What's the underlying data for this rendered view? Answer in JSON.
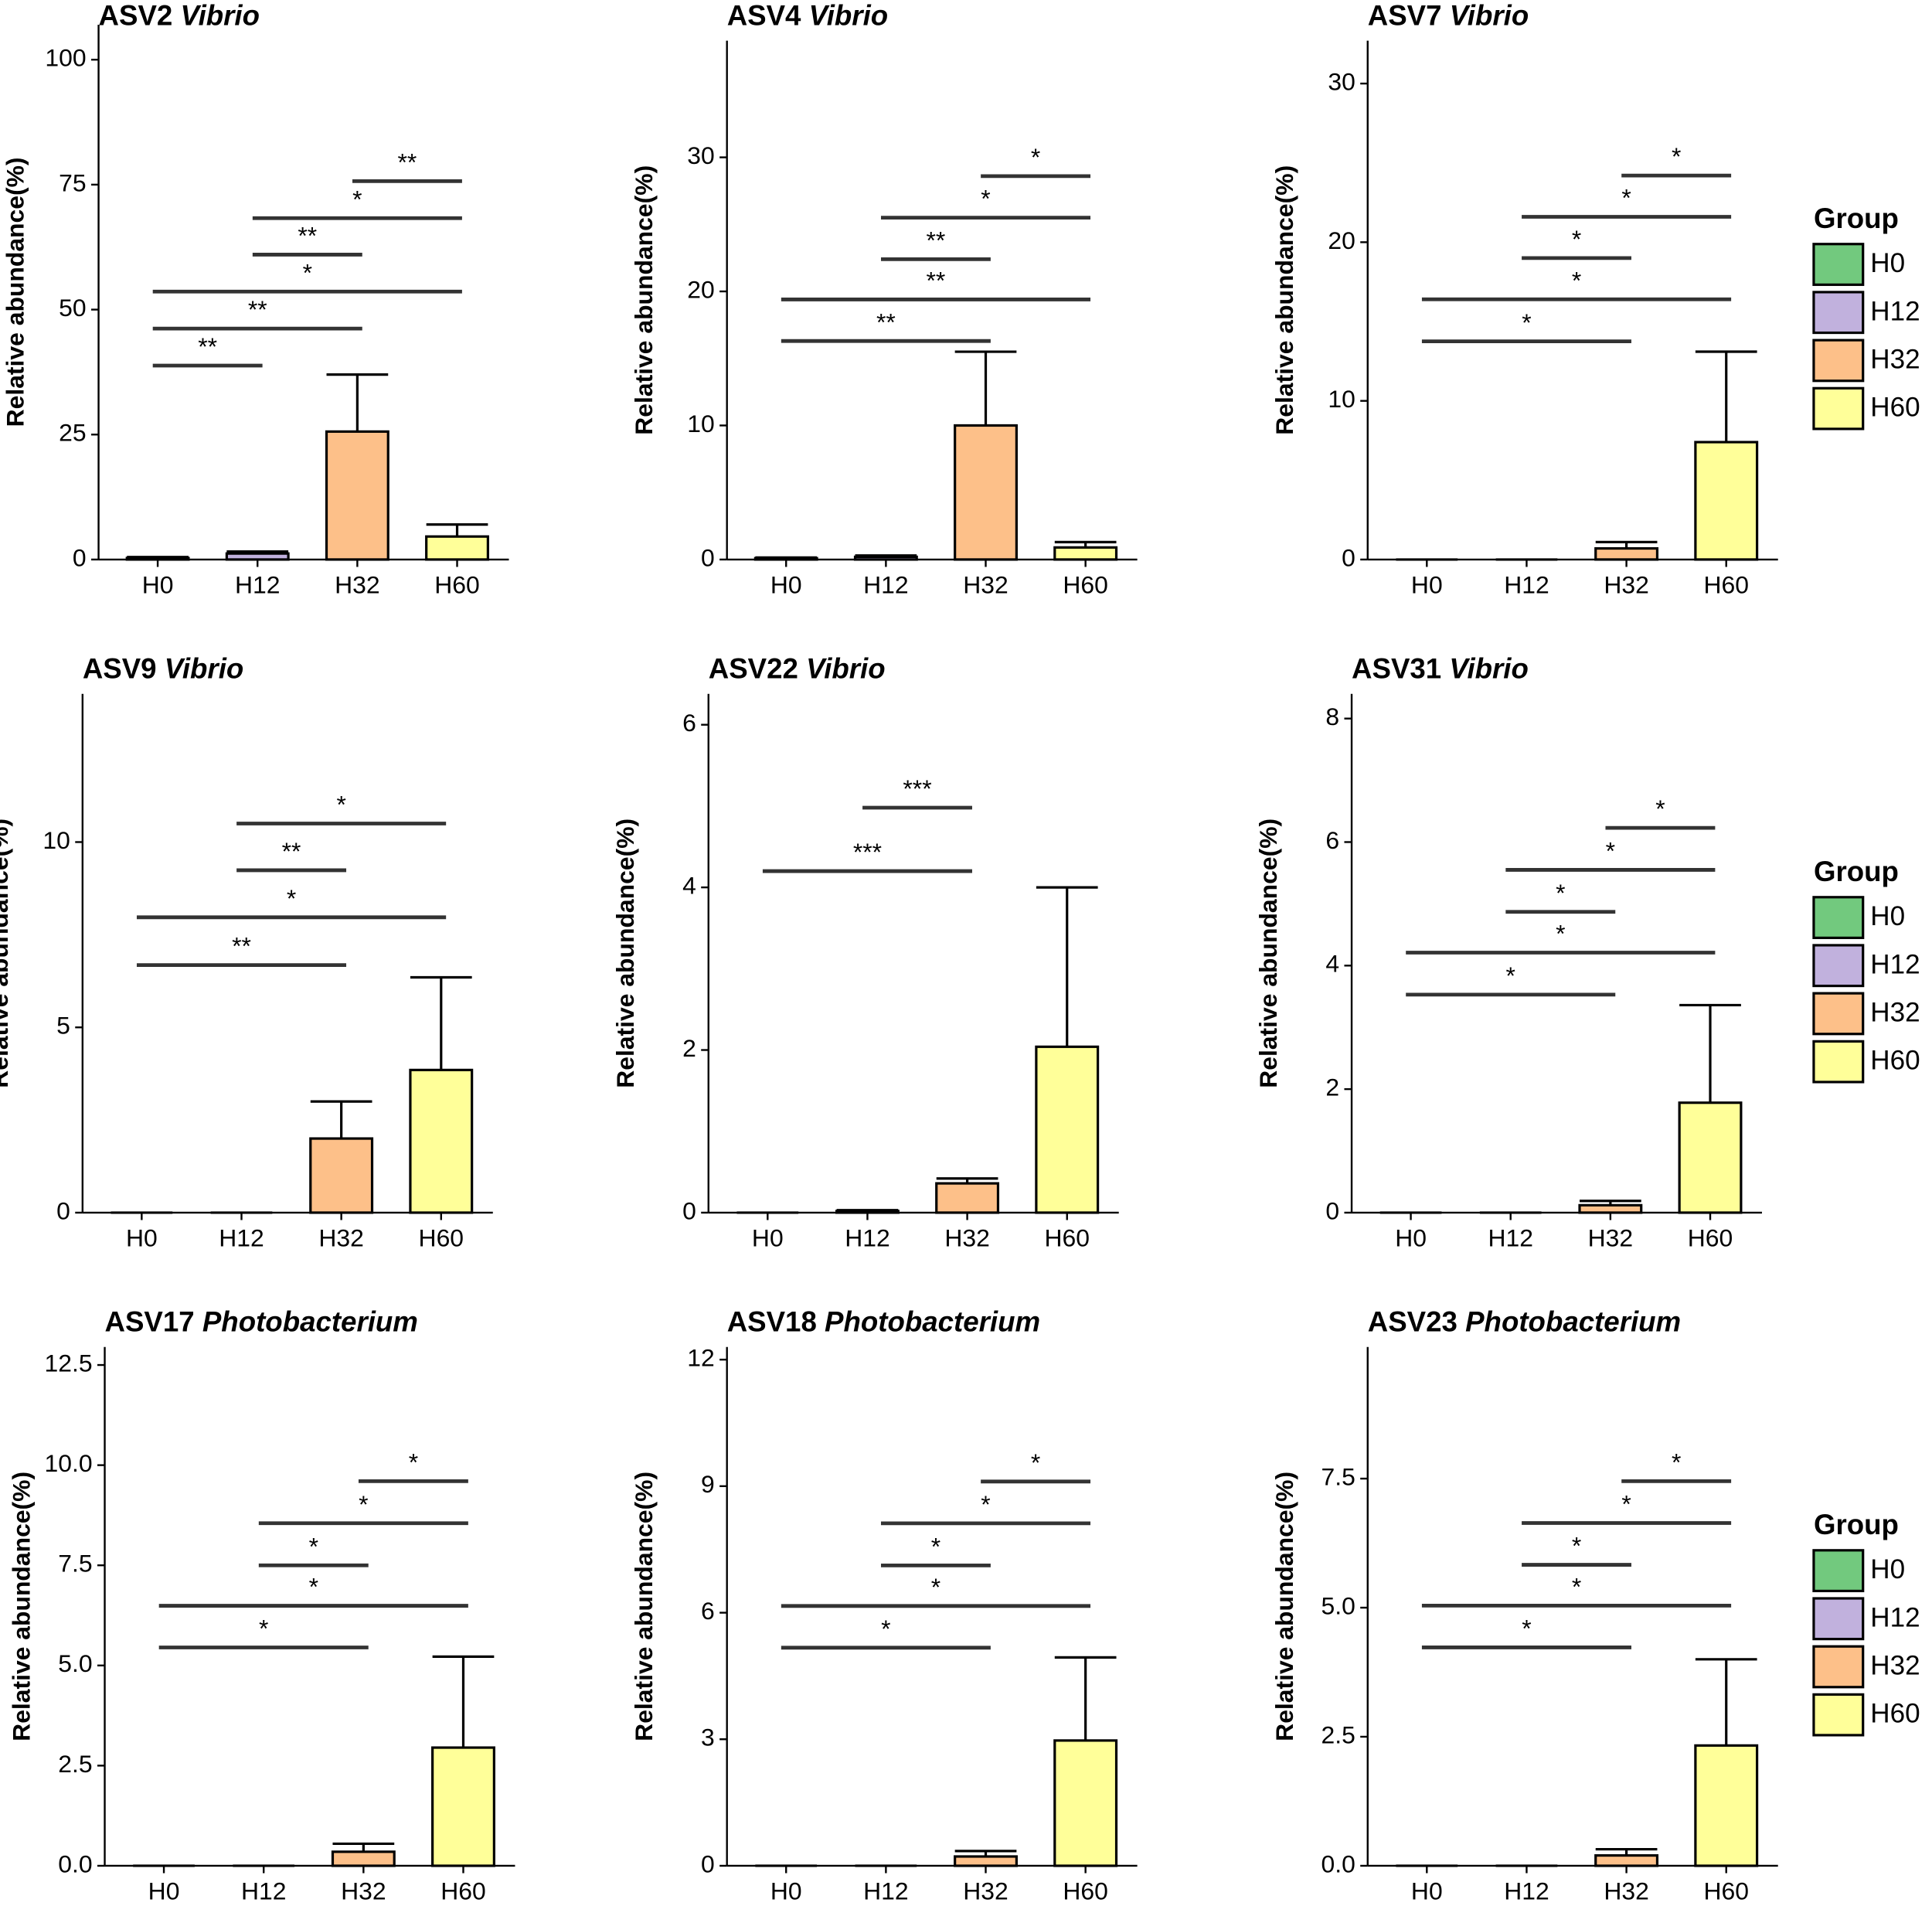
{
  "chart_data": [
    {
      "type": "bar",
      "title": "ASV2",
      "title_italic": "Vibrio",
      "ylabel": "Relative abundance(%)",
      "categories": [
        "H0",
        "H12",
        "H32",
        "H60"
      ],
      "colors": [
        "#72c97e",
        "#c1b1dd",
        "#fdc089",
        "#ffff99"
      ],
      "values": [
        0.3,
        1.2,
        25.6,
        4.6
      ],
      "errors": [
        0.2,
        0.4,
        11.4,
        2.4
      ],
      "ylim": [
        0,
        107
      ],
      "yticks": [
        0,
        25,
        50,
        75,
        100
      ],
      "comparisons": [
        {
          "from": "H0",
          "to": "H12",
          "y": 38.8,
          "label": "**"
        },
        {
          "from": "H0",
          "to": "H32",
          "y": 46.2,
          "label": "**"
        },
        {
          "from": "H0",
          "to": "H60",
          "y": 53.6,
          "label": "*"
        },
        {
          "from": "H12",
          "to": "H32",
          "y": 61,
          "label": "**"
        },
        {
          "from": "H12",
          "to": "H60",
          "y": 68.3,
          "label": "*"
        },
        {
          "from": "H32",
          "to": "H60",
          "y": 75.7,
          "label": "**"
        }
      ]
    },
    {
      "type": "bar",
      "title": "ASV4",
      "title_italic": "Vibrio",
      "ylabel": "Relative abundance(%)",
      "categories": [
        "H0",
        "H12",
        "H32",
        "H60"
      ],
      "colors": [
        "#72c97e",
        "#c1b1dd",
        "#fdc089",
        "#ffff99"
      ],
      "values": [
        0.1,
        0.2,
        10.0,
        0.9
      ],
      "errors": [
        0.05,
        0.1,
        5.5,
        0.4
      ],
      "ylim": [
        0,
        38.7
      ],
      "yticks": [
        0,
        10,
        20,
        30
      ],
      "comparisons": [
        {
          "from": "H0",
          "to": "H32",
          "y": 16.3,
          "label": "**"
        },
        {
          "from": "H0",
          "to": "H60",
          "y": 19.4,
          "label": "**"
        },
        {
          "from": "H12",
          "to": "H32",
          "y": 22.4,
          "label": "**"
        },
        {
          "from": "H12",
          "to": "H60",
          "y": 25.5,
          "label": "*"
        },
        {
          "from": "H32",
          "to": "H60",
          "y": 28.6,
          "label": "*"
        }
      ]
    },
    {
      "type": "bar",
      "title": "ASV7",
      "title_italic": "Vibrio",
      "ylabel": "Relative abundance(%)",
      "categories": [
        "H0",
        "H12",
        "H32",
        "H60"
      ],
      "colors": [
        "#72c97e",
        "#c1b1dd",
        "#fdc089",
        "#ffff99"
      ],
      "values": [
        0,
        0,
        0.7,
        7.4
      ],
      "errors": [
        0,
        0,
        0.4,
        5.7
      ],
      "ylim": [
        0,
        32.7
      ],
      "yticks": [
        0,
        10,
        20,
        30
      ],
      "comparisons": [
        {
          "from": "H0",
          "to": "H32",
          "y": 13.75,
          "label": "*"
        },
        {
          "from": "H0",
          "to": "H60",
          "y": 16.4,
          "label": "*"
        },
        {
          "from": "H12",
          "to": "H32",
          "y": 19.0,
          "label": "*"
        },
        {
          "from": "H12",
          "to": "H60",
          "y": 21.6,
          "label": "*"
        },
        {
          "from": "H32",
          "to": "H60",
          "y": 24.2,
          "label": "*"
        }
      ],
      "legend": {
        "title": "Group"
      }
    },
    {
      "type": "bar",
      "title": "ASV9",
      "title_italic": "Vibrio",
      "ylabel": "Relative abundance(%)",
      "categories": [
        "H0",
        "H12",
        "H32",
        "H60"
      ],
      "colors": [
        "#72c97e",
        "#c1b1dd",
        "#fdc089",
        "#ffff99"
      ],
      "values": [
        0,
        0,
        2.0,
        3.85
      ],
      "errors": [
        0,
        0,
        1.0,
        2.5
      ],
      "ylim": [
        0,
        14.0
      ],
      "yticks": [
        0,
        5,
        10
      ],
      "comparisons": [
        {
          "from": "H0",
          "to": "H32",
          "y": 6.68,
          "label": "**"
        },
        {
          "from": "H0",
          "to": "H60",
          "y": 7.97,
          "label": "*"
        },
        {
          "from": "H12",
          "to": "H32",
          "y": 9.24,
          "label": "**"
        },
        {
          "from": "H12",
          "to": "H60",
          "y": 10.5,
          "label": "*"
        }
      ]
    },
    {
      "type": "bar",
      "title": "ASV22",
      "title_italic": "Vibrio",
      "ylabel": "Relative abundance(%)",
      "categories": [
        "H0",
        "H12",
        "H32",
        "H60"
      ],
      "colors": [
        "#72c97e",
        "#c1b1dd",
        "#fdc089",
        "#ffff99"
      ],
      "values": [
        0,
        0.02,
        0.36,
        2.04
      ],
      "errors": [
        0,
        0.01,
        0.06,
        1.96
      ],
      "ylim": [
        0,
        6.38
      ],
      "yticks": [
        0,
        2,
        4,
        6
      ],
      "comparisons": [
        {
          "from": "H0",
          "to": "H32",
          "y": 4.2,
          "label": "***"
        },
        {
          "from": "H12",
          "to": "H32",
          "y": 4.98,
          "label": "***"
        }
      ]
    },
    {
      "type": "bar",
      "title": "ASV31",
      "title_italic": "Vibrio",
      "ylabel": "Relative abundance(%)",
      "categories": [
        "H0",
        "H12",
        "H32",
        "H60"
      ],
      "colors": [
        "#72c97e",
        "#c1b1dd",
        "#fdc089",
        "#ffff99"
      ],
      "values": [
        0,
        0,
        0.12,
        1.78
      ],
      "errors": [
        0,
        0,
        0.07,
        1.58
      ],
      "ylim": [
        0,
        8.4
      ],
      "yticks": [
        0,
        2,
        4,
        6,
        8
      ],
      "comparisons": [
        {
          "from": "H0",
          "to": "H32",
          "y": 3.53,
          "label": "*"
        },
        {
          "from": "H0",
          "to": "H60",
          "y": 4.21,
          "label": "*"
        },
        {
          "from": "H12",
          "to": "H32",
          "y": 4.87,
          "label": "*"
        },
        {
          "from": "H12",
          "to": "H60",
          "y": 5.55,
          "label": "*"
        },
        {
          "from": "H32",
          "to": "H60",
          "y": 6.23,
          "label": "*"
        }
      ],
      "legend": {
        "title": "Group"
      }
    },
    {
      "type": "bar",
      "title": "ASV17",
      "title_italic": "Photobacterium",
      "ylabel": "Relative abundance(%)",
      "categories": [
        "H0",
        "H12",
        "H32",
        "H60"
      ],
      "colors": [
        "#72c97e",
        "#c1b1dd",
        "#fdc089",
        "#ffff99"
      ],
      "values": [
        0,
        0,
        0.35,
        2.95
      ],
      "errors": [
        0,
        0,
        0.2,
        2.27
      ],
      "ylim": [
        0,
        12.95
      ],
      "yticks": [
        {
          "value": 0,
          "label": "0.0"
        },
        2.5,
        {
          "value": 5,
          "label": "5.0"
        },
        7.5,
        {
          "value": 10,
          "label": "10.0"
        },
        12.5
      ],
      "comparisons": [
        {
          "from": "H0",
          "to": "H32",
          "y": 5.45,
          "label": "*"
        },
        {
          "from": "H0",
          "to": "H60",
          "y": 6.49,
          "label": "*"
        },
        {
          "from": "H12",
          "to": "H32",
          "y": 7.5,
          "label": "*"
        },
        {
          "from": "H12",
          "to": "H60",
          "y": 8.55,
          "label": "*"
        },
        {
          "from": "H32",
          "to": "H60",
          "y": 9.6,
          "label": "*"
        }
      ]
    },
    {
      "type": "bar",
      "title": "ASV18",
      "title_italic": "Photobacterium",
      "ylabel": "Relative abundance(%)",
      "categories": [
        "H0",
        "H12",
        "H32",
        "H60"
      ],
      "colors": [
        "#72c97e",
        "#c1b1dd",
        "#fdc089",
        "#ffff99"
      ],
      "values": [
        0,
        0,
        0.22,
        2.97
      ],
      "errors": [
        0,
        0,
        0.13,
        1.97
      ],
      "ylim": [
        0,
        12.3
      ],
      "yticks": [
        0,
        3,
        6,
        9,
        12
      ],
      "comparisons": [
        {
          "from": "H0",
          "to": "H32",
          "y": 5.17,
          "label": "*"
        },
        {
          "from": "H0",
          "to": "H60",
          "y": 6.16,
          "label": "*"
        },
        {
          "from": "H12",
          "to": "H32",
          "y": 7.12,
          "label": "*"
        },
        {
          "from": "H12",
          "to": "H60",
          "y": 8.12,
          "label": "*"
        },
        {
          "from": "H32",
          "to": "H60",
          "y": 9.11,
          "label": "*"
        }
      ]
    },
    {
      "type": "bar",
      "title": "ASV23",
      "title_italic": "Photobacterium",
      "ylabel": "Relative abundance(%)",
      "categories": [
        "H0",
        "H12",
        "H32",
        "H60"
      ],
      "colors": [
        "#72c97e",
        "#c1b1dd",
        "#fdc089",
        "#ffff99"
      ],
      "values": [
        0,
        0,
        0.2,
        2.33
      ],
      "errors": [
        0,
        0,
        0.12,
        1.67
      ],
      "ylim": [
        0,
        10.05
      ],
      "yticks": [
        {
          "value": 0,
          "label": "0.0"
        },
        2.5,
        {
          "value": 5,
          "label": "5.0"
        },
        7.5
      ],
      "comparisons": [
        {
          "from": "H0",
          "to": "H32",
          "y": 4.23,
          "label": "*"
        },
        {
          "from": "H0",
          "to": "H60",
          "y": 5.04,
          "label": "*"
        },
        {
          "from": "H12",
          "to": "H32",
          "y": 5.83,
          "label": "*"
        },
        {
          "from": "H12",
          "to": "H60",
          "y": 6.64,
          "label": "*"
        },
        {
          "from": "H32",
          "to": "H60",
          "y": 7.45,
          "label": "*"
        }
      ],
      "legend": {
        "title": "Group"
      }
    }
  ]
}
